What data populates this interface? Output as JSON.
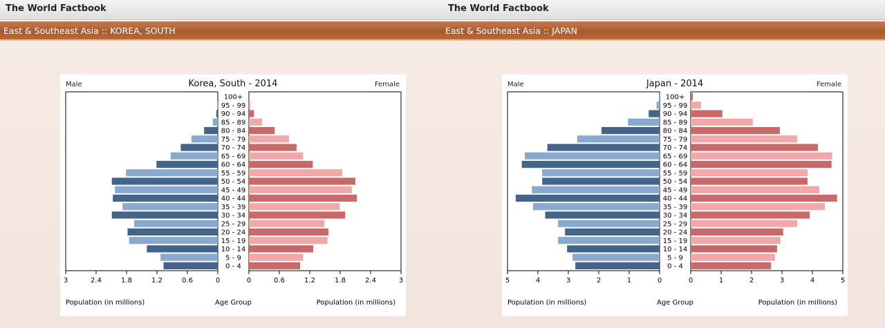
{
  "panes": [
    {
      "app_title": "The World Factbook",
      "region_label": "East & Southeast Asia :: KOREA, SOUTH"
    },
    {
      "app_title": "The World Factbook",
      "region_label": "East & Southeast Asia :: JAPAN"
    }
  ],
  "colors": {
    "male_dark": "#45648a",
    "male_light": "#8aa9cf",
    "female_dark": "#c96a6a",
    "female_light": "#f0a8a8"
  },
  "chart_data": [
    {
      "type": "bar",
      "title": "Korea, South - 2014",
      "male_label": "Male",
      "female_label": "Female",
      "xlabel_left": "Population (in millions)",
      "xlabel_center": "Age Group",
      "xlabel_right": "Population (in millions)",
      "xlim": [
        0,
        3
      ],
      "ticks": [
        "3",
        "2.4",
        "1.8",
        "1.2",
        "0.6",
        "0",
        "0",
        "0.6",
        "1.2",
        "1.8",
        "2.4",
        "3"
      ],
      "categories": [
        "100+",
        "95 - 99",
        "90 - 94",
        "85 - 89",
        "80 - 84",
        "75 - 79",
        "70 - 74",
        "65 - 69",
        "60 - 64",
        "55 - 59",
        "50 - 54",
        "45 - 49",
        "40 - 44",
        "35 - 39",
        "30 - 34",
        "25 - 29",
        "20 - 24",
        "15 - 19",
        "10 - 14",
        "5 - 9",
        "0 - 4"
      ],
      "series": [
        {
          "name": "Male",
          "values": [
            0.0,
            0.01,
            0.03,
            0.1,
            0.27,
            0.52,
            0.73,
            0.93,
            1.21,
            1.81,
            2.09,
            2.03,
            2.07,
            1.88,
            2.09,
            1.65,
            1.78,
            1.75,
            1.4,
            1.13,
            1.07
          ]
        },
        {
          "name": "Female",
          "values": [
            0.0,
            0.03,
            0.1,
            0.26,
            0.51,
            0.79,
            0.94,
            1.07,
            1.26,
            1.84,
            2.1,
            2.03,
            2.13,
            1.79,
            1.9,
            1.49,
            1.57,
            1.55,
            1.27,
            1.07,
            1.01
          ]
        }
      ]
    },
    {
      "type": "bar",
      "title": "Japan - 2014",
      "male_label": "Male",
      "female_label": "Female",
      "xlabel_left": "Population (in millions)",
      "xlabel_center": "Age Group",
      "xlabel_right": "Population (in millions)",
      "xlim": [
        0,
        5
      ],
      "ticks": [
        "5",
        "4",
        "3",
        "2",
        "1",
        "0",
        "0",
        "1",
        "2",
        "3",
        "4",
        "5"
      ],
      "categories": [
        "100+",
        "95 - 99",
        "90 - 94",
        "85 - 89",
        "80 - 84",
        "75 - 79",
        "70 - 74",
        "65 - 69",
        "60 - 64",
        "55 - 59",
        "50 - 54",
        "45 - 49",
        "40 - 44",
        "35 - 39",
        "30 - 34",
        "25 - 29",
        "20 - 24",
        "15 - 19",
        "10 - 14",
        "5 - 9",
        "0 - 4"
      ],
      "series": [
        {
          "name": "Male",
          "values": [
            0.01,
            0.1,
            0.36,
            1.04,
            1.91,
            2.71,
            3.69,
            4.43,
            4.53,
            3.86,
            3.86,
            4.2,
            4.73,
            4.16,
            3.76,
            3.34,
            3.11,
            3.34,
            3.04,
            2.86,
            2.77
          ]
        },
        {
          "name": "Female",
          "values": [
            0.07,
            0.34,
            1.04,
            2.04,
            2.93,
            3.5,
            4.18,
            4.65,
            4.63,
            3.84,
            3.84,
            4.23,
            4.81,
            4.41,
            3.91,
            3.5,
            3.04,
            2.95,
            2.84,
            2.77,
            2.64
          ]
        }
      ]
    }
  ]
}
